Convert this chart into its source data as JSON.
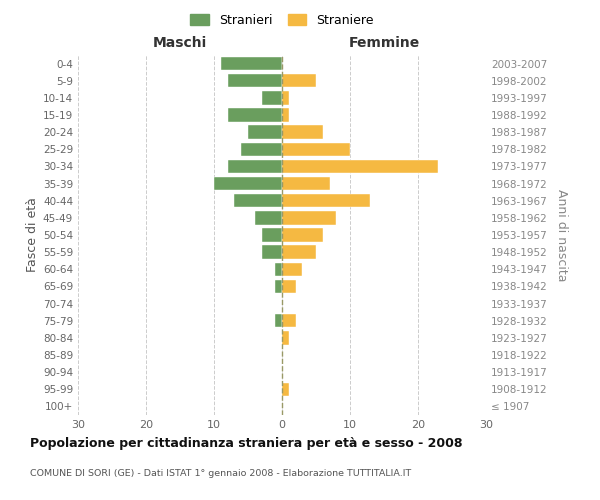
{
  "age_groups": [
    "100+",
    "95-99",
    "90-94",
    "85-89",
    "80-84",
    "75-79",
    "70-74",
    "65-69",
    "60-64",
    "55-59",
    "50-54",
    "45-49",
    "40-44",
    "35-39",
    "30-34",
    "25-29",
    "20-24",
    "15-19",
    "10-14",
    "5-9",
    "0-4"
  ],
  "birth_years": [
    "≤ 1907",
    "1908-1912",
    "1913-1917",
    "1918-1922",
    "1923-1927",
    "1928-1932",
    "1933-1937",
    "1938-1942",
    "1943-1947",
    "1948-1952",
    "1953-1957",
    "1958-1962",
    "1963-1967",
    "1968-1972",
    "1973-1977",
    "1978-1982",
    "1983-1987",
    "1988-1992",
    "1993-1997",
    "1998-2002",
    "2003-2007"
  ],
  "maschi": [
    0,
    0,
    0,
    0,
    0,
    1,
    0,
    1,
    1,
    3,
    3,
    4,
    7,
    10,
    8,
    6,
    5,
    8,
    3,
    8,
    9
  ],
  "femmine": [
    0,
    1,
    0,
    0,
    1,
    2,
    0,
    2,
    3,
    5,
    6,
    8,
    13,
    7,
    23,
    10,
    6,
    1,
    1,
    5,
    0
  ],
  "maschi_color": "#6a9e5e",
  "femmine_color": "#f5b942",
  "background_color": "#ffffff",
  "grid_color": "#cccccc",
  "title": "Popolazione per cittadinanza straniera per età e sesso - 2008",
  "subtitle": "COMUNE DI SORI (GE) - Dati ISTAT 1° gennaio 2008 - Elaborazione TUTTITALIA.IT",
  "ylabel": "Fasce di età",
  "right_ylabel": "Anni di nascita",
  "maschi_label": "Stranieri",
  "femmine_label": "Straniere",
  "left_label": "Maschi",
  "right_label": "Femmine",
  "xlim": 30
}
